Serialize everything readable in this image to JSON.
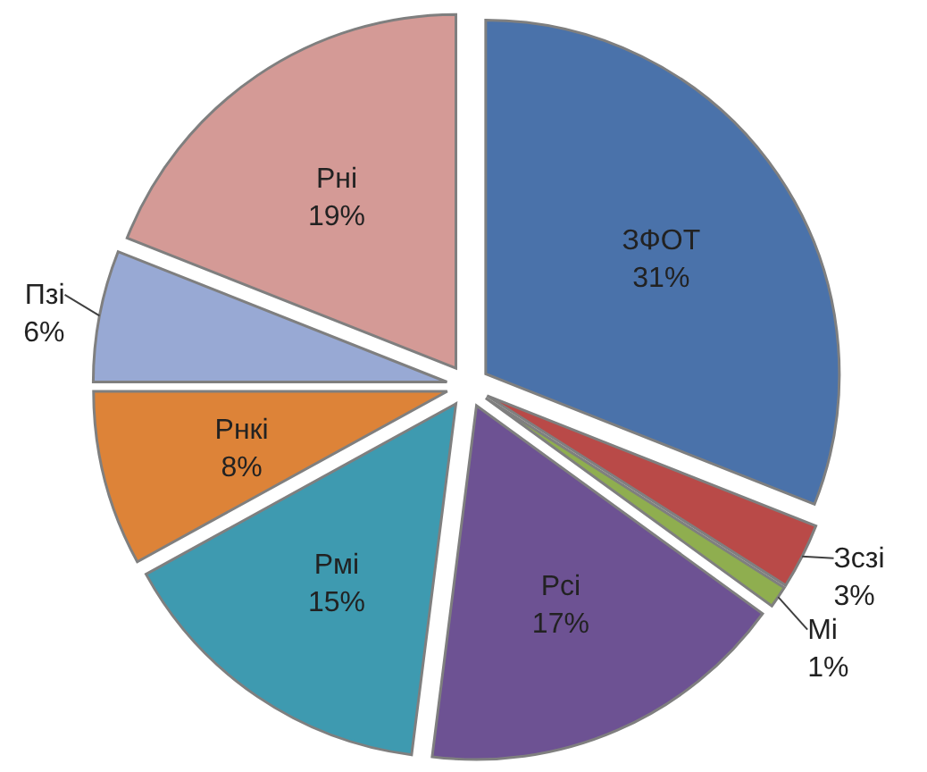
{
  "chart_data": {
    "type": "pie",
    "categories": [
      "ЗФОТ",
      "Зсзі",
      "Мі",
      "Рсі",
      "Рмі",
      "Рнкі",
      "Пзі",
      "Рні"
    ],
    "values": [
      31,
      3,
      1,
      17,
      15,
      8,
      6,
      19
    ],
    "colors": [
      "#4a72aa",
      "#b94a48",
      "#8fae4f",
      "#6d5293",
      "#3e9ab0",
      "#dd8338",
      "#98a9d4",
      "#d49a96"
    ],
    "value_labels": [
      "31%",
      "3%",
      "1%",
      "17%",
      "15%",
      "8%",
      "6%",
      "19%"
    ]
  }
}
